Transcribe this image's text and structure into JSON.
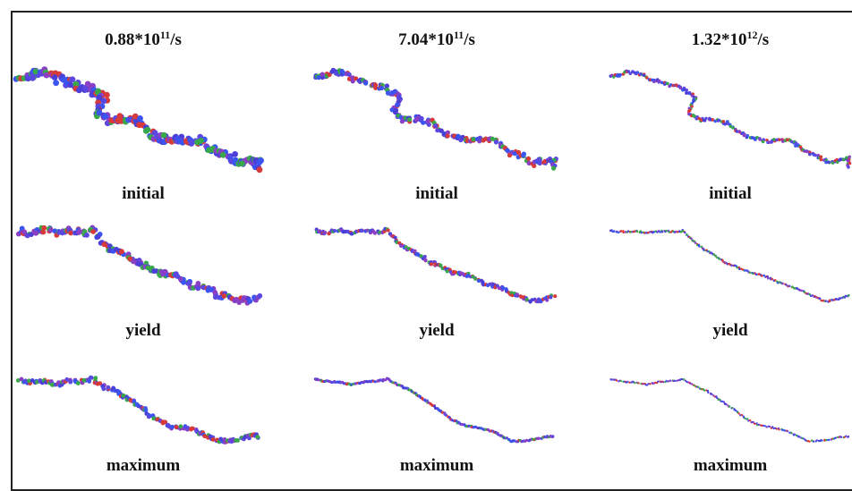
{
  "columns": [
    {
      "rate": {
        "mantissa": "0.88*10",
        "exponent": "11",
        "unit": "/s"
      },
      "labels": [
        "initial",
        "yield",
        "maximum"
      ]
    },
    {
      "rate": {
        "mantissa": "7.04*10",
        "exponent": "11",
        "unit": "/s"
      },
      "labels": [
        "initial",
        "yield",
        "maximum"
      ]
    },
    {
      "rate": {
        "mantissa": "1.32*10",
        "exponent": "12",
        "unit": "/s"
      },
      "labels": [
        "initial",
        "yield",
        "maximum"
      ]
    }
  ]
}
